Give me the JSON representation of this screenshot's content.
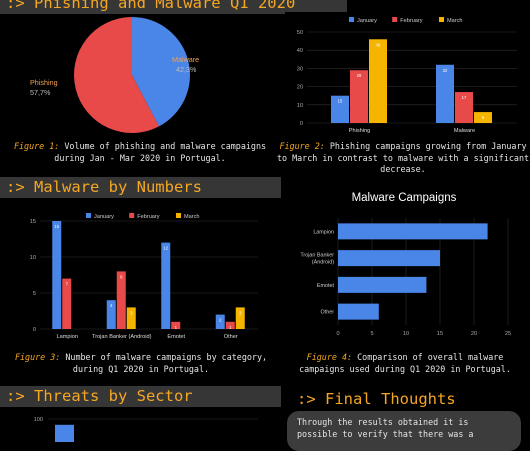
{
  "headers": {
    "phishing_malware": ":> Phishing and Malware Q1 2020",
    "malware_numbers": ":> Malware by Numbers",
    "threats_sector": ":> Threats by Sector",
    "final_thoughts": ":> Final Thoughts"
  },
  "captions": {
    "fig1_label": "Figure 1:",
    "fig1_text": " Volume of phishing and malware campaigns during Jan - Mar 2020 in Portugal.",
    "fig2_label": "Figure 2:",
    "fig2_text": " Phishing campaigns growing from January to March in contrast to malware with a significant decrease.",
    "fig3_label": "Figure 3:",
    "fig3_text": " Number of malware campaigns by category, during Q1 2020 in Portugal.",
    "fig4_label": "Figure 4:",
    "fig4_text": " Comparison of overall malware campaigns used during Q1 2020 in Portugal."
  },
  "final_thoughts_text": "Through the results obtained it is possible to verify that there was a",
  "colors": {
    "january": "#4a86e8",
    "february": "#e84a4a",
    "march": "#f5b400",
    "header_text": "#f5a623",
    "header_bg": "#363636"
  },
  "chart_data": [
    {
      "type": "pie",
      "slices": [
        {
          "label": "Malware",
          "pct_label": "42,3%",
          "value": 42.3,
          "color": "#4a86e8"
        },
        {
          "label": "Phishing",
          "pct_label": "57,7%",
          "value": 57.7,
          "color": "#e84a4a"
        }
      ]
    },
    {
      "type": "bar",
      "categories": [
        "Phishing",
        "Malware"
      ],
      "series": [
        {
          "name": "January",
          "values": [
            15,
            32
          ]
        },
        {
          "name": "February",
          "values": [
            29,
            17
          ]
        },
        {
          "name": "March",
          "values": [
            46,
            6
          ]
        }
      ],
      "ylim": [
        0,
        50
      ],
      "yticks": [
        "0",
        "10",
        "20",
        "30",
        "40",
        "50"
      ],
      "legend": "top"
    },
    {
      "type": "bar",
      "categories": [
        "Lampion",
        "Trojan Banker (Android)",
        "Emotet",
        "Other"
      ],
      "series": [
        {
          "name": "January",
          "values": [
            15,
            4,
            12,
            2
          ]
        },
        {
          "name": "February",
          "values": [
            7,
            8,
            1,
            1
          ]
        },
        {
          "name": "March",
          "values": [
            0,
            3,
            0,
            3
          ]
        }
      ],
      "ylim": [
        0,
        15
      ],
      "yticks": [
        "0",
        "5",
        "10",
        "15"
      ],
      "legend": "top"
    },
    {
      "type": "bar",
      "orientation": "horizontal",
      "title": "Malware Campaigns",
      "categories": [
        "Lampion",
        "Trojan Banker (Android)",
        "Emotet",
        "Other"
      ],
      "values": [
        22,
        15,
        13,
        6
      ],
      "xlim": [
        0,
        25
      ],
      "xticks": [
        "0",
        "5",
        "10",
        "15",
        "20",
        "25"
      ]
    },
    {
      "type": "bar",
      "categories": [
        ""
      ],
      "values": [
        95
      ],
      "ylim": [
        0,
        100
      ],
      "yticks": [
        "75",
        "100"
      ]
    }
  ]
}
